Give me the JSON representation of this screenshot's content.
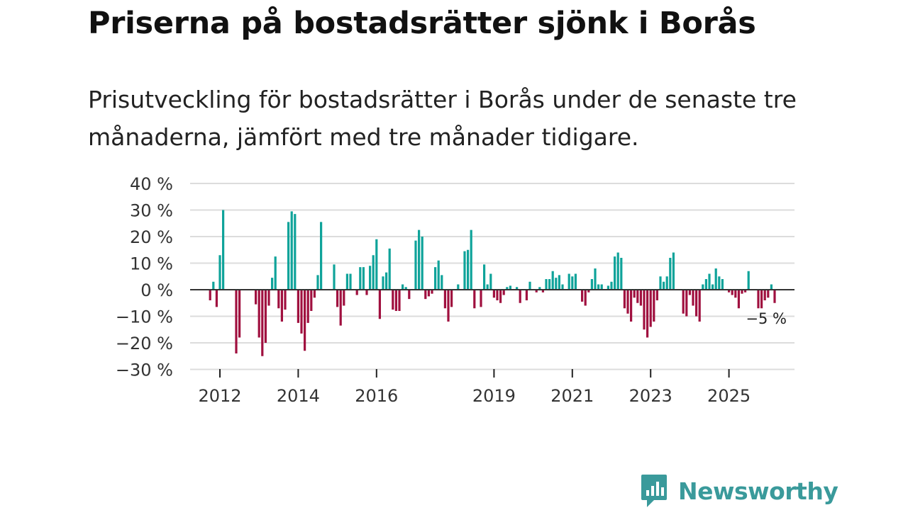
{
  "title": "Priserna på bostadsrätter sjönk i Borås",
  "subtitle": "Prisutveckling för bostadsrätter i Borås under de senaste tre månaderna, jämfört med tre månader tidigare.",
  "brand": {
    "name": "Newsworthy"
  },
  "colors": {
    "positive": "#0fa39a",
    "negative": "#a0103f",
    "zero_line": "#333333",
    "grid": "#dcdcdc",
    "brand": "#3a9a9b"
  },
  "chart_data": {
    "type": "bar",
    "title": "Priserna på bostadsrätter sjönk i Borås",
    "xlabel": "",
    "ylabel": "",
    "ylim": [
      -30,
      40
    ],
    "x_start": 2011.75,
    "step": 0.0833333,
    "y_ticks": [
      40,
      30,
      20,
      10,
      0,
      -10,
      -20,
      -30
    ],
    "y_tick_labels": [
      "40 %",
      "30 %",
      "20 %",
      "10 %",
      "0 %",
      "−10 %",
      "−20 %",
      "−30 %"
    ],
    "x_ticks": [
      2012,
      2014,
      2016,
      2019,
      2021,
      2023,
      2025
    ],
    "x_tick_labels": [
      "2012",
      "2014",
      "2016",
      "2019",
      "2021",
      "2023",
      "2025"
    ],
    "last_value_label": "−5 %",
    "values": [
      -4,
      3,
      -6.5,
      13,
      30,
      0,
      0,
      0,
      -24,
      -18,
      0,
      0,
      0,
      0,
      -5.5,
      -18,
      -25,
      -20,
      -6,
      4.5,
      12.5,
      -7,
      -12,
      -7.5,
      25.5,
      29.5,
      28.5,
      -12.5,
      -16.5,
      -23,
      -12.5,
      -8,
      -3,
      5.5,
      25.5,
      0,
      0,
      0,
      9.5,
      -6.5,
      -13.5,
      -6,
      6,
      6,
      0,
      -2,
      8.5,
      8.5,
      -2,
      9,
      13,
      19,
      -11,
      5,
      6.5,
      15.5,
      -7.5,
      -8,
      -8,
      2,
      1,
      -3.5,
      0,
      18.5,
      22.5,
      20,
      -3.5,
      -2.5,
      -1.5,
      8.5,
      11,
      5.5,
      -7,
      -12,
      -6.5,
      0,
      2,
      0,
      14.5,
      15,
      22.5,
      -7,
      0,
      -6.5,
      9.5,
      2,
      6,
      -3,
      -4,
      -5,
      -2,
      1,
      1.5,
      0,
      1,
      -5,
      0,
      -4,
      3,
      0,
      -1,
      1,
      -1,
      4,
      4,
      7,
      4.5,
      5.5,
      2,
      0,
      6,
      5,
      6,
      0,
      -4.5,
      -6,
      -1,
      4,
      8,
      2,
      2,
      0,
      1.5,
      3,
      12.5,
      14,
      12,
      -7,
      -9,
      -12,
      -3,
      -5,
      -6,
      -15,
      -18,
      -14,
      -12,
      -4,
      5,
      3,
      5,
      12,
      14,
      0,
      0,
      -9,
      -10,
      -2,
      -6,
      -10,
      -12,
      2,
      4,
      6,
      2,
      8,
      5,
      4,
      0,
      -1,
      -2,
      -3,
      -7,
      -1.5,
      -1,
      7,
      0,
      0,
      -7,
      -7,
      -4,
      -3,
      2,
      -5
    ]
  }
}
